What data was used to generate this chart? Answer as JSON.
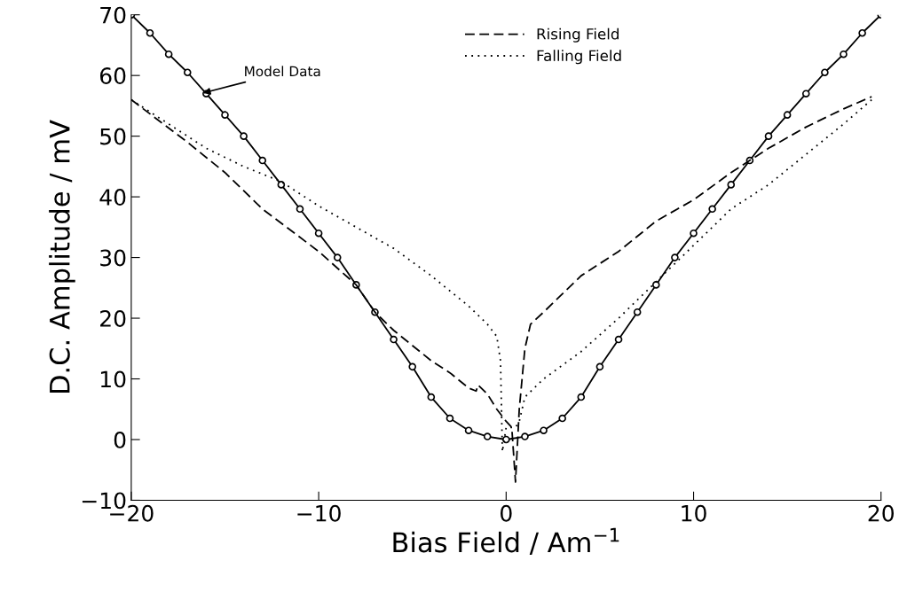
{
  "chart_data": {
    "type": "line",
    "xlabel": "Bias Field / Am$^{−1}$",
    "ylabel": "D.C. Amplitude / mV",
    "xlim": [
      -20,
      20
    ],
    "xticks": [
      -20,
      -10,
      0,
      10,
      20
    ],
    "ylim": [
      -10,
      70
    ],
    "yticks": [
      -10,
      0,
      10,
      20,
      30,
      40,
      50,
      60,
      70
    ],
    "grid": false,
    "legend": "top",
    "annotations": [
      {
        "text": "Model Data",
        "x": -16.3,
        "y": 57
      }
    ],
    "series": [
      {
        "name": null,
        "color": "#000000",
        "marker": "circle",
        "line_style": "solid",
        "x": [
          -20,
          -19,
          -18,
          -17,
          -16,
          -15,
          -14,
          -13,
          -12,
          -11,
          -10,
          -9,
          -8,
          -7,
          -6,
          -5,
          -4,
          -3,
          -2,
          -1,
          0,
          1,
          2,
          3,
          4,
          5,
          6,
          7,
          8,
          9,
          10,
          11,
          12,
          13,
          14,
          15,
          16,
          17,
          18,
          19,
          20
        ],
        "values": [
          70,
          67,
          63.5,
          60.5,
          57,
          53.5,
          50,
          46,
          42,
          38,
          34,
          30,
          25.5,
          21,
          16.5,
          12,
          7,
          3.5,
          1.5,
          0.5,
          0,
          0.5,
          1.5,
          3.5,
          7,
          12,
          16.5,
          21,
          25.5,
          30,
          34,
          38,
          42,
          46,
          50,
          53.5,
          57,
          60.5,
          63.5,
          67,
          70
        ]
      },
      {
        "name": "Rising Field",
        "color": "#000000",
        "marker": "none",
        "line_style": "dashed",
        "x": [
          -20,
          -17,
          -15,
          -13,
          -10,
          -8,
          -7,
          -6,
          -4,
          -3,
          -2,
          -1.6,
          -1.5,
          -1,
          -0.5,
          0,
          0.3,
          0.5,
          0.7,
          1,
          1.3,
          2,
          3,
          4,
          6,
          8,
          10,
          12,
          14,
          16,
          18,
          19.5
        ],
        "values": [
          56,
          49,
          44,
          38,
          31,
          25.5,
          21,
          18,
          13,
          11,
          8.5,
          8,
          9,
          7.5,
          5,
          3,
          2,
          -7,
          5,
          15,
          19,
          21,
          24,
          27,
          31,
          36,
          39.5,
          44,
          48,
          51.5,
          54.5,
          56.5
        ]
      },
      {
        "name": "Falling Field",
        "color": "#000000",
        "marker": "none",
        "line_style": "dotted",
        "x": [
          19.5,
          18,
          16,
          14,
          12,
          10,
          8,
          6,
          4,
          2,
          1,
          0.7,
          0.5,
          0,
          -0.2,
          -0.3,
          -0.5,
          -1,
          -2,
          -4,
          -6,
          -8,
          -10,
          -12,
          -14,
          -16,
          -18,
          -20
        ],
        "values": [
          56,
          52,
          47,
          42,
          38,
          32,
          26,
          20,
          14.5,
          10,
          7,
          3,
          2,
          2,
          -2,
          13,
          17,
          19,
          22,
          27,
          31.5,
          35,
          38.5,
          42.5,
          45,
          48,
          52,
          56
        ]
      }
    ]
  }
}
